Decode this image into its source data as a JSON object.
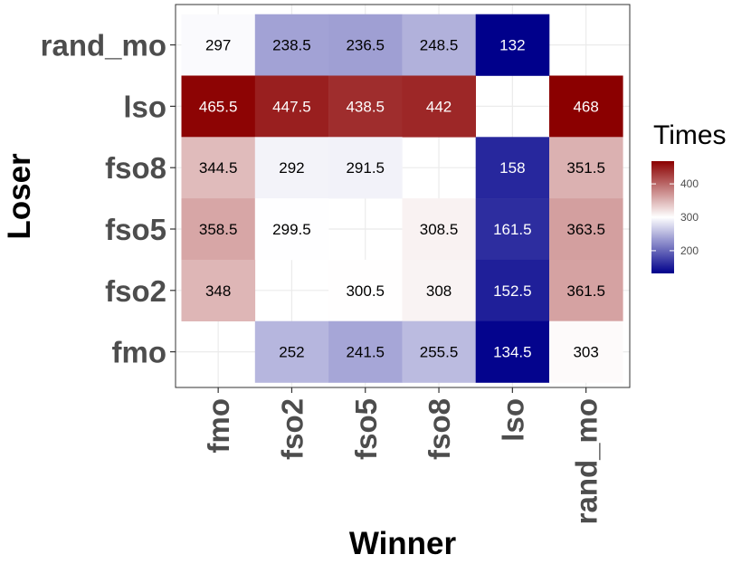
{
  "chart_data": {
    "type": "heatmap",
    "xlabel": "Winner",
    "ylabel": "Loser",
    "x_categories": [
      "fmo",
      "fso2",
      "fso5",
      "fso8",
      "lso",
      "rand_mo"
    ],
    "y_categories": [
      "fmo",
      "fso2",
      "fso5",
      "fso8",
      "lso",
      "rand_mo"
    ],
    "cells": [
      {
        "winner": "fmo",
        "loser": "rand_mo",
        "value": 297,
        "label": "297"
      },
      {
        "winner": "fso2",
        "loser": "rand_mo",
        "value": 238.5,
        "label": "238.5"
      },
      {
        "winner": "fso5",
        "loser": "rand_mo",
        "value": 236.5,
        "label": "236.5"
      },
      {
        "winner": "fso8",
        "loser": "rand_mo",
        "value": 248.5,
        "label": "248.5"
      },
      {
        "winner": "lso",
        "loser": "rand_mo",
        "value": 132,
        "label": "132"
      },
      {
        "winner": "fmo",
        "loser": "lso",
        "value": 465.5,
        "label": "465.5"
      },
      {
        "winner": "fso2",
        "loser": "lso",
        "value": 447.5,
        "label": "447.5"
      },
      {
        "winner": "fso5",
        "loser": "lso",
        "value": 438.5,
        "label": "438.5"
      },
      {
        "winner": "fso8",
        "loser": "lso",
        "value": 442,
        "label": "442"
      },
      {
        "winner": "rand_mo",
        "loser": "lso",
        "value": 468,
        "label": "468"
      },
      {
        "winner": "fmo",
        "loser": "fso8",
        "value": 344.5,
        "label": "344.5"
      },
      {
        "winner": "fso2",
        "loser": "fso8",
        "value": 292,
        "label": "292"
      },
      {
        "winner": "fso5",
        "loser": "fso8",
        "value": 291.5,
        "label": "291.5"
      },
      {
        "winner": "lso",
        "loser": "fso8",
        "value": 158,
        "label": "158"
      },
      {
        "winner": "rand_mo",
        "loser": "fso8",
        "value": 351.5,
        "label": "351.5"
      },
      {
        "winner": "fmo",
        "loser": "fso5",
        "value": 358.5,
        "label": "358.5"
      },
      {
        "winner": "fso2",
        "loser": "fso5",
        "value": 299.5,
        "label": "299.5"
      },
      {
        "winner": "fso8",
        "loser": "fso5",
        "value": 308.5,
        "label": "308.5"
      },
      {
        "winner": "lso",
        "loser": "fso5",
        "value": 161.5,
        "label": "161.5"
      },
      {
        "winner": "rand_mo",
        "loser": "fso5",
        "value": 363.5,
        "label": "363.5"
      },
      {
        "winner": "fmo",
        "loser": "fso2",
        "value": 348,
        "label": "348"
      },
      {
        "winner": "fso5",
        "loser": "fso2",
        "value": 300.5,
        "label": "300.5"
      },
      {
        "winner": "fso8",
        "loser": "fso2",
        "value": 308,
        "label": "308"
      },
      {
        "winner": "lso",
        "loser": "fso2",
        "value": 152.5,
        "label": "152.5"
      },
      {
        "winner": "rand_mo",
        "loser": "fso2",
        "value": 361.5,
        "label": "361.5"
      },
      {
        "winner": "fso2",
        "loser": "fmo",
        "value": 252,
        "label": "252"
      },
      {
        "winner": "fso5",
        "loser": "fmo",
        "value": 241.5,
        "label": "241.5"
      },
      {
        "winner": "fso8",
        "loser": "fmo",
        "value": 255.5,
        "label": "255.5"
      },
      {
        "winner": "lso",
        "loser": "fmo",
        "value": 134.5,
        "label": "134.5"
      },
      {
        "winner": "rand_mo",
        "loser": "fmo",
        "value": 303,
        "label": "303"
      }
    ],
    "legend": {
      "title": "Times",
      "ticks": [
        200,
        300,
        400
      ],
      "range": [
        132,
        468
      ],
      "colors": {
        "low": "#00008b",
        "mid": "#ffffff",
        "high": "#8b0000"
      },
      "midpoint": 300,
      "placement": "right"
    },
    "grid": true
  }
}
